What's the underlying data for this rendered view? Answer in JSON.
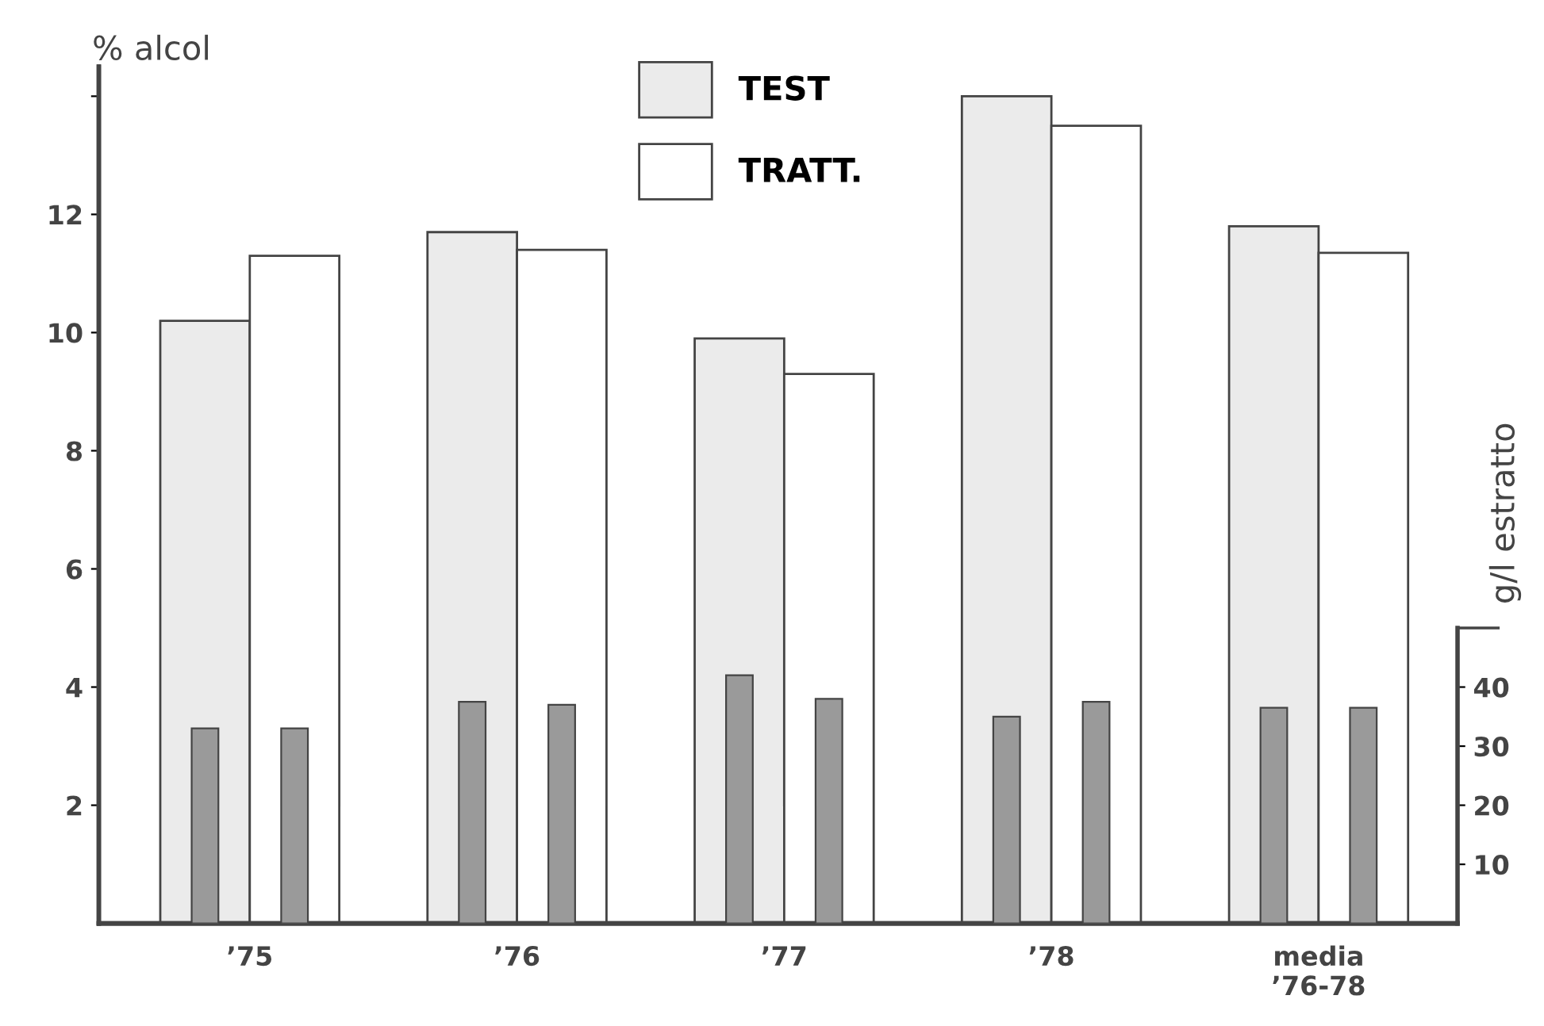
{
  "chart_data": {
    "type": "bar",
    "ylabel": "% alcol",
    "y2label": "g/l estratto",
    "categories": [
      "’75",
      "’76",
      "’77",
      "’78",
      "media\n’76-78"
    ],
    "series": [
      {
        "name": "TEST",
        "color": "#ebebeb",
        "values": [
          10.2,
          11.7,
          9.9,
          14.0,
          11.8
        ]
      },
      {
        "name": "TRATT.",
        "color": "#ffffff",
        "values": [
          11.3,
          11.4,
          9.3,
          13.5,
          11.35
        ]
      },
      {
        "axis": "y2",
        "color": "#9a9a9a",
        "values": [
          33,
          37.5,
          42,
          35,
          36.5
        ]
      },
      {
        "axis": "y2",
        "color": "#9a9a9a",
        "values": [
          33,
          37,
          38,
          37.5,
          36.5
        ]
      }
    ],
    "ylim": [
      0,
      14.5
    ],
    "yticks": [
      2,
      4,
      6,
      8,
      10,
      12,
      {
        "value": 14,
        "label": null
      }
    ],
    "y2lim": [
      0,
      145
    ],
    "y2ticks": [
      10,
      20,
      30,
      40
    ],
    "grid": false,
    "legend": "top"
  }
}
